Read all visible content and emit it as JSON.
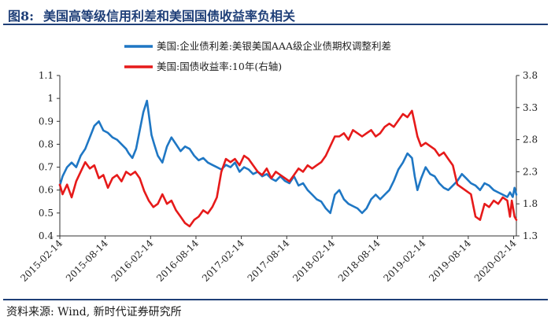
{
  "header": {
    "figure_label": "图8:",
    "title": "美国高等级信用利差和美国国债收益率负相关"
  },
  "footer": {
    "source": "资料来源: Wind, 新时代证券研究所"
  },
  "colors": {
    "series_blue": "#1f77c4",
    "series_red": "#e61a1a",
    "title": "#1f3f78"
  },
  "chart_data": {
    "type": "line",
    "title": "",
    "legend_position": "top-center",
    "grid": false,
    "x_tick_labels": [
      "2015-02-14",
      "2015-08-14",
      "2016-02-14",
      "2016-08-14",
      "2017-02-14",
      "2017-08-14",
      "2018-02-14",
      "2018-08-14",
      "2019-02-14",
      "2019-08-14",
      "2020-02-14"
    ],
    "x_range": [
      2015.12,
      2020.15
    ],
    "y_left": {
      "range": [
        0.4,
        1.1
      ],
      "ticks": [
        "0.4",
        "0.5",
        "0.6",
        "0.7",
        "0.8",
        "0.9",
        "1",
        "1.1"
      ]
    },
    "y_right": {
      "range": [
        1.3,
        3.8
      ],
      "ticks": [
        "1.3",
        "1.8",
        "2.3",
        "2.8",
        "3.3",
        "3.8"
      ]
    },
    "series": [
      {
        "name": "美国:企业债利差:美银美国AAA级企业债期权调整利差",
        "axis": "left",
        "color": "#1f77c4",
        "x": [
          2015.12,
          2015.15,
          2015.2,
          2015.25,
          2015.3,
          2015.35,
          2015.4,
          2015.45,
          2015.5,
          2015.55,
          2015.6,
          2015.65,
          2015.7,
          2015.75,
          2015.8,
          2015.85,
          2015.88,
          2015.92,
          2015.96,
          2016.0,
          2016.04,
          2016.08,
          2016.11,
          2016.13,
          2016.16,
          2016.2,
          2016.25,
          2016.3,
          2016.35,
          2016.4,
          2016.45,
          2016.5,
          2016.55,
          2016.6,
          2016.65,
          2016.7,
          2016.75,
          2016.8,
          2016.85,
          2016.9,
          2016.95,
          2017.0,
          2017.05,
          2017.1,
          2017.15,
          2017.2,
          2017.25,
          2017.3,
          2017.35,
          2017.4,
          2017.45,
          2017.5,
          2017.55,
          2017.6,
          2017.65,
          2017.7,
          2017.75,
          2017.8,
          2017.85,
          2017.9,
          2017.95,
          2018.0,
          2018.05,
          2018.1,
          2018.15,
          2018.2,
          2018.25,
          2018.3,
          2018.35,
          2018.4,
          2018.45,
          2018.5,
          2018.55,
          2018.6,
          2018.65,
          2018.7,
          2018.75,
          2018.8,
          2018.85,
          2018.9,
          2018.95,
          2019.0,
          2019.03,
          2019.06,
          2019.1,
          2019.15,
          2019.2,
          2019.25,
          2019.3,
          2019.35,
          2019.4,
          2019.45,
          2019.5,
          2019.55,
          2019.6,
          2019.65,
          2019.7,
          2019.75,
          2019.8,
          2019.85,
          2019.9,
          2019.95,
          2020.0,
          2020.05,
          2020.08,
          2020.11,
          2020.13,
          2020.15
        ],
        "values": [
          0.62,
          0.66,
          0.7,
          0.72,
          0.7,
          0.75,
          0.78,
          0.83,
          0.88,
          0.9,
          0.86,
          0.85,
          0.83,
          0.82,
          0.8,
          0.78,
          0.76,
          0.74,
          0.78,
          0.86,
          0.94,
          0.99,
          0.9,
          0.84,
          0.8,
          0.75,
          0.72,
          0.79,
          0.83,
          0.8,
          0.77,
          0.79,
          0.78,
          0.75,
          0.73,
          0.74,
          0.72,
          0.71,
          0.7,
          0.69,
          0.71,
          0.7,
          0.72,
          0.68,
          0.7,
          0.69,
          0.67,
          0.68,
          0.66,
          0.67,
          0.65,
          0.64,
          0.66,
          0.64,
          0.63,
          0.66,
          0.62,
          0.63,
          0.6,
          0.58,
          0.56,
          0.55,
          0.52,
          0.5,
          0.58,
          0.6,
          0.56,
          0.54,
          0.53,
          0.52,
          0.5,
          0.52,
          0.56,
          0.58,
          0.56,
          0.58,
          0.6,
          0.64,
          0.69,
          0.72,
          0.76,
          0.74,
          0.66,
          0.6,
          0.65,
          0.7,
          0.67,
          0.66,
          0.63,
          0.61,
          0.6,
          0.62,
          0.64,
          0.67,
          0.65,
          0.63,
          0.62,
          0.6,
          0.63,
          0.62,
          0.6,
          0.59,
          0.58,
          0.57,
          0.59,
          0.57,
          0.61,
          0.58
        ]
      },
      {
        "name": "美国:国债收益率:10年(右轴)",
        "axis": "right",
        "color": "#e61a1a",
        "x": [
          2015.12,
          2015.15,
          2015.2,
          2015.25,
          2015.3,
          2015.35,
          2015.4,
          2015.45,
          2015.5,
          2015.55,
          2015.6,
          2015.65,
          2015.7,
          2015.75,
          2015.8,
          2015.85,
          2015.9,
          2015.95,
          2016.0,
          2016.05,
          2016.1,
          2016.15,
          2016.2,
          2016.25,
          2016.3,
          2016.35,
          2016.4,
          2016.45,
          2016.5,
          2016.55,
          2016.6,
          2016.65,
          2016.7,
          2016.75,
          2016.8,
          2016.85,
          2016.9,
          2016.95,
          2017.0,
          2017.05,
          2017.1,
          2017.15,
          2017.2,
          2017.25,
          2017.3,
          2017.35,
          2017.4,
          2017.45,
          2017.5,
          2017.55,
          2017.6,
          2017.65,
          2017.7,
          2017.75,
          2017.8,
          2017.85,
          2017.9,
          2017.95,
          2018.0,
          2018.05,
          2018.1,
          2018.15,
          2018.2,
          2018.25,
          2018.3,
          2018.35,
          2018.4,
          2018.45,
          2018.5,
          2018.55,
          2018.6,
          2018.65,
          2018.7,
          2018.75,
          2018.8,
          2018.85,
          2018.9,
          2018.95,
          2019.0,
          2019.03,
          2019.06,
          2019.1,
          2019.15,
          2019.2,
          2019.25,
          2019.3,
          2019.35,
          2019.4,
          2019.45,
          2019.5,
          2019.55,
          2019.6,
          2019.65,
          2019.7,
          2019.75,
          2019.8,
          2019.85,
          2019.9,
          2019.95,
          2020.0,
          2020.05,
          2020.08,
          2020.1,
          2020.13,
          2020.15
        ],
        "values": [
          2.1,
          1.95,
          2.1,
          1.9,
          2.15,
          2.3,
          2.45,
          2.35,
          2.4,
          2.2,
          2.25,
          2.05,
          2.2,
          2.25,
          2.15,
          2.3,
          2.25,
          2.3,
          2.2,
          2.0,
          1.85,
          1.75,
          1.8,
          1.95,
          1.8,
          1.85,
          1.7,
          1.6,
          1.5,
          1.45,
          1.55,
          1.6,
          1.7,
          1.65,
          1.75,
          1.9,
          2.3,
          2.5,
          2.45,
          2.5,
          2.4,
          2.55,
          2.5,
          2.4,
          2.3,
          2.25,
          2.35,
          2.2,
          2.3,
          2.25,
          2.2,
          2.15,
          2.25,
          2.35,
          2.3,
          2.4,
          2.35,
          2.4,
          2.45,
          2.55,
          2.7,
          2.85,
          2.85,
          2.9,
          2.8,
          2.95,
          2.9,
          2.85,
          2.9,
          2.95,
          2.85,
          2.9,
          3.0,
          3.05,
          3.0,
          3.1,
          3.2,
          3.15,
          3.25,
          3.05,
          2.85,
          2.7,
          2.75,
          2.7,
          2.65,
          2.55,
          2.6,
          2.5,
          2.4,
          2.1,
          2.05,
          2.0,
          1.95,
          1.6,
          1.55,
          1.8,
          1.75,
          1.85,
          1.8,
          1.9,
          1.85,
          1.6,
          1.85,
          1.6,
          1.55
        ]
      }
    ]
  }
}
